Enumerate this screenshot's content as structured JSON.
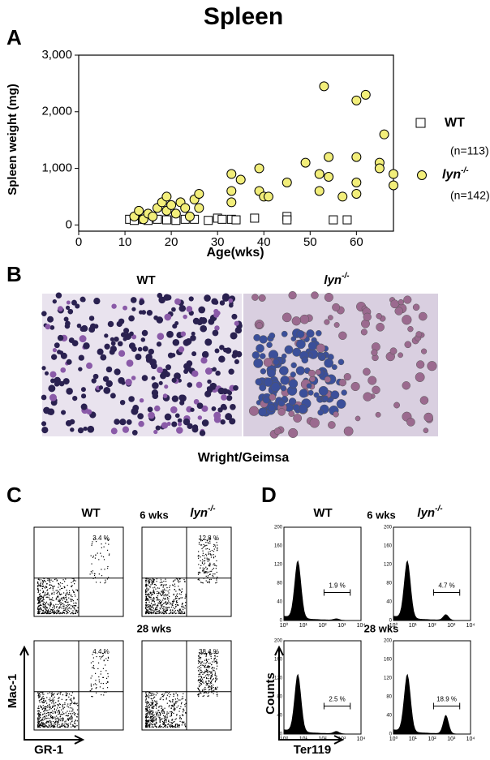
{
  "title": "Spleen",
  "panel_a": {
    "letter": "A"
  },
  "chart_data": {
    "type": "scatter",
    "xlabel": "Age(wks)",
    "ylabel": "Spleen weight  (mg)",
    "xlim": [
      0,
      68
    ],
    "ylim": [
      -110,
      3000
    ],
    "xticks": [
      0,
      10,
      20,
      30,
      40,
      50,
      60
    ],
    "yticks": [
      0,
      {
        "value": 1000,
        "label": "1,000"
      },
      {
        "value": 2000,
        "label": "2,000"
      },
      {
        "value": 3000,
        "label": "3,000"
      }
    ],
    "series": [
      {
        "name": "WT",
        "note": "(n=113)",
        "marker": "square",
        "color": "#ffffff",
        "x": [
          11,
          12,
          14,
          15,
          17,
          19,
          21,
          23,
          25,
          28,
          30,
          31,
          33,
          34,
          38,
          45,
          45,
          55,
          58
        ],
        "values": [
          100,
          80,
          100,
          80,
          100,
          90,
          80,
          100,
          100,
          80,
          120,
          100,
          100,
          90,
          120,
          150,
          90,
          90,
          90
        ]
      },
      {
        "name": "lyn",
        "sup": "-/-",
        "note": "(n=142)",
        "marker": "circle",
        "color": "#f2ee7a",
        "x": [
          12,
          13,
          14,
          15,
          16,
          17,
          18,
          19,
          19,
          20,
          21,
          22,
          23,
          24,
          25,
          26,
          26,
          33,
          33,
          33,
          35,
          39,
          39,
          40,
          41,
          45,
          49,
          52,
          52,
          53,
          54,
          54,
          57,
          60,
          60,
          60,
          60,
          62,
          65,
          66,
          65,
          68,
          68
        ],
        "values": [
          150,
          250,
          100,
          200,
          150,
          300,
          400,
          500,
          250,
          350,
          200,
          400,
          300,
          150,
          450,
          550,
          300,
          900,
          600,
          400,
          800,
          1000,
          600,
          500,
          500,
          750,
          1100,
          900,
          600,
          2450,
          1200,
          850,
          500,
          2200,
          1200,
          750,
          550,
          2300,
          1100,
          1600,
          1000,
          900,
          700
        ]
      }
    ]
  },
  "panel_b": {
    "letter": "B",
    "left": "WT",
    "right": "lyn",
    "right_sup": "-/-",
    "caption": "Wright/Geimsa"
  },
  "panel_c": {
    "letter": "C",
    "wt": "WT",
    "time1": "6 wks",
    "lyn": "lyn",
    "lyn_sup": "-/-",
    "time2": "28 wks",
    "percents": [
      "3.4 %",
      "12.8 %",
      "4.4 %",
      "38.4 %"
    ],
    "ylabel": "Mac-1",
    "xlabel": "GR-1"
  },
  "panel_d": {
    "letter": "D",
    "wt": "WT",
    "time1": "6 wks",
    "lyn": "lyn",
    "lyn_sup": "-/-",
    "time2": "28 wks",
    "percents": [
      "1.9 %",
      "4.7 %",
      "2.5 %",
      "18.9 %"
    ],
    "ylabel": "Counts",
    "xlabel": "Ter119",
    "yticklabels": [
      "0",
      "40",
      "80",
      "120",
      "160",
      "200"
    ],
    "xticklabels": [
      "10⁰",
      "10¹",
      "10²",
      "10³",
      "10⁴"
    ]
  }
}
